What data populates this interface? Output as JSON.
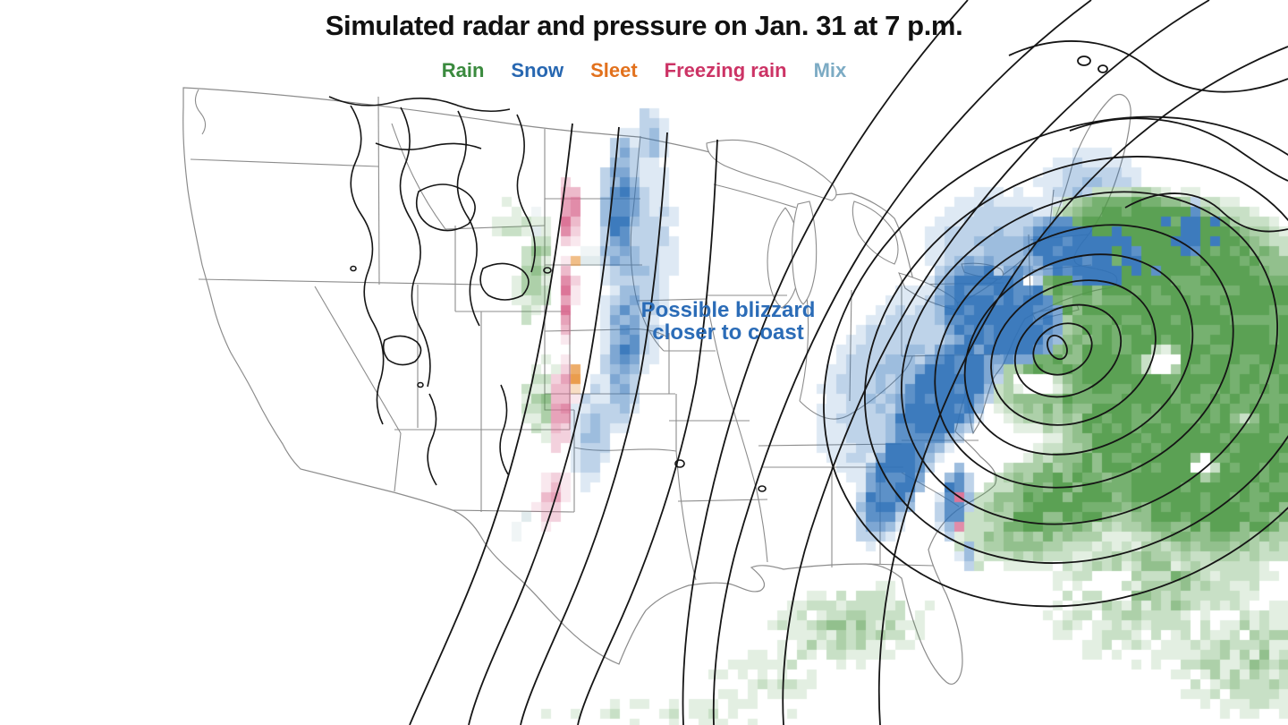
{
  "title": "Simulated radar and pressure on Jan. 31 at 7 p.m.",
  "legend": {
    "items": [
      {
        "label": "Rain",
        "color": "#3a8a3e"
      },
      {
        "label": "Snow",
        "color": "#2767b1"
      },
      {
        "label": "Sleet",
        "color": "#e2711d"
      },
      {
        "label": "Freezing rain",
        "color": "#cc3365"
      },
      {
        "label": "Mix",
        "color": "#7cabc4"
      }
    ]
  },
  "annotation": {
    "line1": "Possible blizzard",
    "line2": "closer to coast",
    "color": "#2b6cb7"
  },
  "map_data": {
    "background": "#ffffff",
    "state_line_color": "#8c8c8c",
    "contour_color": "#151515",
    "cell_size": 11,
    "precip_colors": {
      "rain": "#4f9a47",
      "snow": "#2e71b8",
      "sleet": "#e8963f",
      "frz": "#d96b90",
      "mix": "#9fbdc4"
    },
    "precip_blobs": [
      [
        "snow",
        1003,
        530,
        36,
        92,
        25,
        1,
        0.5,
        0.35
      ],
      [
        "snow",
        1055,
        440,
        52,
        100,
        38,
        1,
        0.55,
        0.3
      ],
      [
        "snow",
        1118,
        348,
        90,
        70,
        30,
        1,
        0.6,
        0.3
      ],
      [
        "snow",
        1225,
        285,
        100,
        52,
        12,
        1,
        0.6,
        0.3
      ],
      [
        "snow",
        1320,
        258,
        85,
        42,
        8,
        0.9,
        0.5,
        0.35
      ],
      [
        "snow",
        1010,
        430,
        100,
        148,
        32,
        0.45,
        0.1,
        0.3
      ],
      [
        "snow",
        1145,
        298,
        132,
        92,
        25,
        0.5,
        0.15,
        0.3
      ],
      [
        "snow",
        1218,
        208,
        78,
        55,
        0,
        0.35,
        0.08,
        0.4
      ],
      [
        "snow",
        1068,
        560,
        20,
        48,
        8,
        0.85,
        0.45,
        0.4
      ],
      [
        "snow",
        1082,
        616,
        14,
        26,
        0,
        0.55,
        0.2,
        0.5
      ],
      [
        "snow",
        694,
        235,
        26,
        100,
        3,
        0.8,
        0.35,
        0.45
      ],
      [
        "snow",
        700,
        382,
        26,
        112,
        5,
        0.75,
        0.3,
        0.45
      ],
      [
        "snow",
        714,
        300,
        50,
        165,
        5,
        0.38,
        0.08,
        0.4
      ],
      [
        "snow",
        727,
        152,
        22,
        42,
        0,
        0.5,
        0.15,
        0.45
      ],
      [
        "snow",
        663,
        484,
        30,
        80,
        8,
        0.4,
        0.08,
        0.5
      ],
      [
        "rain",
        1345,
        430,
        185,
        225,
        -15,
        1,
        0.68,
        0.4
      ],
      [
        "rain",
        1302,
        266,
        138,
        54,
        12,
        1,
        0.6,
        0.35
      ],
      [
        "rain",
        1207,
        330,
        66,
        40,
        22,
        0.9,
        0.5,
        0.4
      ],
      [
        "rain",
        1180,
        425,
        82,
        70,
        0,
        0.8,
        0.35,
        0.5
      ],
      [
        "rain",
        1192,
        556,
        132,
        70,
        -25,
        0.85,
        0.45,
        0.5
      ],
      [
        "rain",
        1298,
        648,
        155,
        102,
        -20,
        0.5,
        0.12,
        0.95
      ],
      [
        "rain",
        1402,
        738,
        108,
        78,
        0,
        0.45,
        0.08,
        0.95
      ],
      [
        "rain",
        950,
        700,
        115,
        54,
        -8,
        0.42,
        0.08,
        0.9
      ],
      [
        "rain",
        855,
        757,
        88,
        40,
        0,
        0.25,
        0.03,
        0.95
      ],
      [
        "rain",
        760,
        797,
        260,
        26,
        0,
        0.17,
        0,
        0.95
      ],
      [
        "rain",
        598,
        302,
        25,
        74,
        4,
        0.5,
        0.15,
        0.85
      ],
      [
        "rain",
        610,
        450,
        30,
        56,
        -8,
        0.5,
        0.12,
        0.85
      ],
      [
        "rain",
        574,
        247,
        26,
        38,
        0,
        0.28,
        0.04,
        0.95
      ],
      [
        "rain",
        1102,
        602,
        42,
        40,
        0,
        0.55,
        0.15,
        0.7
      ],
      [
        "frz",
        637,
        238,
        15,
        42,
        0,
        0.8,
        0.4,
        0.5
      ],
      [
        "frz",
        633,
        332,
        12,
        54,
        3,
        0.78,
        0.35,
        0.5
      ],
      [
        "frz",
        628,
        453,
        17,
        58,
        8,
        0.72,
        0.3,
        0.5
      ],
      [
        "frz",
        618,
        556,
        21,
        42,
        15,
        0.45,
        0.08,
        0.8
      ],
      [
        "frz",
        1071,
        553,
        6,
        9,
        0,
        0.95,
        0.6,
        0.2
      ],
      [
        "frz",
        1074,
        586,
        6,
        9,
        0,
        0.95,
        0.6,
        0.2
      ],
      [
        "sleet",
        646,
        292,
        4,
        13,
        0,
        0.9,
        0.5,
        0.3
      ],
      [
        "sleet",
        643,
        421,
        4,
        16,
        0,
        0.85,
        0.45,
        0.3
      ],
      [
        "sleet",
        637,
        504,
        5,
        13,
        0,
        0.7,
        0.35,
        0.4
      ],
      [
        "sleet",
        1143,
        450,
        5,
        6,
        0,
        0.9,
        0.5,
        0.2
      ],
      [
        "mix",
        660,
        288,
        8,
        30,
        0,
        0.42,
        0.1,
        0.8
      ],
      [
        "mix",
        601,
        253,
        17,
        24,
        0,
        0.28,
        0.04,
        0.9
      ],
      [
        "mix",
        586,
        586,
        18,
        26,
        0,
        0.22,
        0.02,
        0.9
      ],
      [
        "hole",
        1160,
        428,
        30,
        16,
        0,
        0.95,
        0.5,
        0
      ],
      [
        "hole",
        1300,
        405,
        26,
        20,
        0,
        0.9,
        0.5,
        0
      ],
      [
        "hole",
        1346,
        520,
        22,
        16,
        0,
        0.85,
        0.4,
        0
      ],
      [
        "hole",
        1150,
        312,
        13,
        9,
        0,
        0.7,
        0.4,
        0
      ],
      [
        "hole",
        1392,
        468,
        17,
        13,
        0,
        0.6,
        0.3,
        0
      ],
      [
        "hole",
        1244,
        652,
        28,
        20,
        0,
        0.55,
        0.2,
        0
      ],
      [
        "hole",
        1118,
        302,
        10,
        7,
        0,
        0.6,
        0.3,
        0
      ]
    ],
    "pressure": {
      "low_center": [
        1182,
        388
      ],
      "rotation": -28,
      "drift": [
        6,
        2
      ],
      "rings": [
        [
          10,
          14
        ],
        [
          34,
          27
        ],
        [
          62,
          48
        ],
        [
          96,
          76
        ],
        [
          133,
          105
        ],
        [
          174,
          138
        ],
        [
          219,
          175
        ],
        [
          268,
          214
        ],
        [
          322,
          258
        ]
      ]
    }
  }
}
